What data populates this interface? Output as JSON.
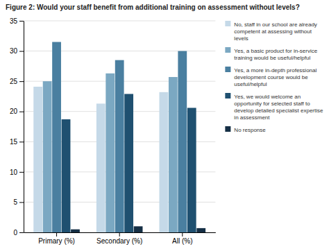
{
  "chart_data": {
    "type": "bar",
    "title": "Figure 2: Would your staff benefit from additional training on assessment without levels?",
    "categories": [
      "Primary (%)",
      "Secondary (%)",
      "All (%)"
    ],
    "series": [
      {
        "name": "No, staff in our school are already\ncompetent at assessing without\nlevels",
        "color": "#c5d9e8",
        "values": [
          24.1,
          21.3,
          23.2
        ]
      },
      {
        "name": "Yes, a basic product for in-service\ntraining would be useful/helpful",
        "color": "#7ba8c2",
        "values": [
          25.0,
          26.3,
          25.7
        ]
      },
      {
        "name": "Yes, a more in-depth professional\ndevelopment course would be\nuseful/helpful",
        "color": "#4a7fa0",
        "values": [
          31.5,
          28.5,
          30.0
        ]
      },
      {
        "name": "Yes, we would welcome an\nopportunity for selected staff to\ndevelop detailed specialist expertise\nin assessment",
        "color": "#1f5070",
        "values": [
          18.7,
          22.9,
          20.6
        ]
      },
      {
        "name": "No response",
        "color": "#152f45",
        "values": [
          0.5,
          1.0,
          0.7
        ]
      }
    ],
    "ylim": [
      0,
      35
    ],
    "yticks": [
      0,
      5,
      10,
      15,
      20,
      25,
      30,
      35
    ],
    "grid": true,
    "legend": "right"
  }
}
